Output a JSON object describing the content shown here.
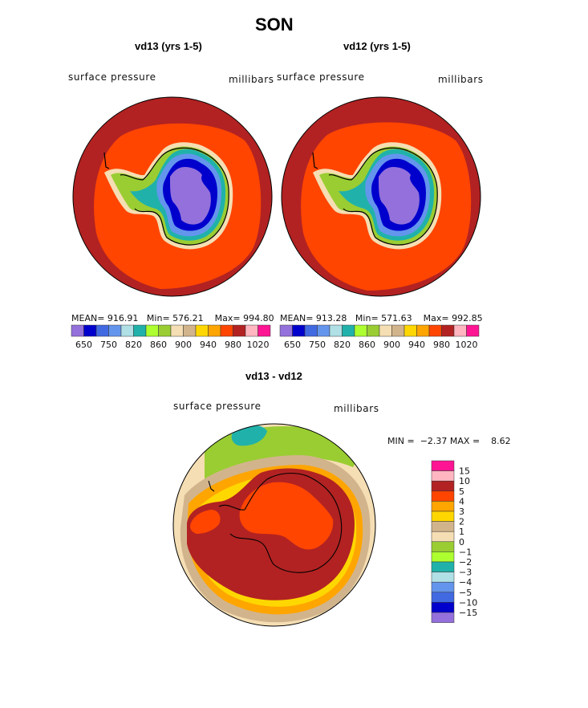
{
  "title": "SON",
  "panels": [
    {
      "subtitle": "vd13 (yrs 1-5)",
      "left_label": "surface pressure",
      "right_label": "millibars",
      "stats": {
        "mean_label": "MEAN=",
        "mean": "916.91",
        "min_label": "Min=",
        "min": "576.21",
        "max_label": "Max=",
        "max": "994.80"
      }
    },
    {
      "subtitle": "vd12 (yrs 1-5)",
      "left_label": "surface pressure",
      "right_label": "millibars",
      "stats": {
        "mean_label": "MEAN=",
        "mean": "913.28",
        "min_label": "Min=",
        "min": "571.63",
        "max_label": "Max=",
        "max": "992.85"
      }
    }
  ],
  "abs_colorbar": {
    "colors": [
      "#9370DB",
      "#0000CD",
      "#4169E1",
      "#6495ED",
      "#B0E0E6",
      "#20B2AA",
      "#ADFF2F",
      "#9ACD32",
      "#F5DEB3",
      "#D2B48C",
      "#FFD700",
      "#FFA500",
      "#FF4500",
      "#B22222",
      "#FFB6C1",
      "#FF1493"
    ],
    "labels": [
      "650",
      "750",
      "820",
      "860",
      "900",
      "940",
      "980",
      "1020"
    ]
  },
  "diff": {
    "subtitle": "vd13 - vd12",
    "left_label": "surface pressure",
    "right_label": "millibars",
    "minmax": {
      "min_label": "MIN =",
      "min": "−2.37",
      "max_label": "MAX =",
      "max": "8.62"
    },
    "colorbar": {
      "colors": [
        "#FF1493",
        "#FFB6C1",
        "#B22222",
        "#FF4500",
        "#FFA500",
        "#FFD700",
        "#D2B48C",
        "#F5DEB3",
        "#9ACD32",
        "#ADFF2F",
        "#20B2AA",
        "#B0E0E6",
        "#6495ED",
        "#4169E1",
        "#0000CD",
        "#9370DB"
      ],
      "labels": [
        "15",
        "10",
        "5",
        "4",
        "3",
        "2",
        "1",
        "0",
        "−1",
        "−2",
        "−3",
        "−4",
        "−5",
        "−10",
        "−15"
      ]
    }
  },
  "colors": {
    "ocean_outer": "#B22222",
    "ocean_inner": "#FF4500",
    "plateau": "#9370DB",
    "coast": "#000000"
  }
}
